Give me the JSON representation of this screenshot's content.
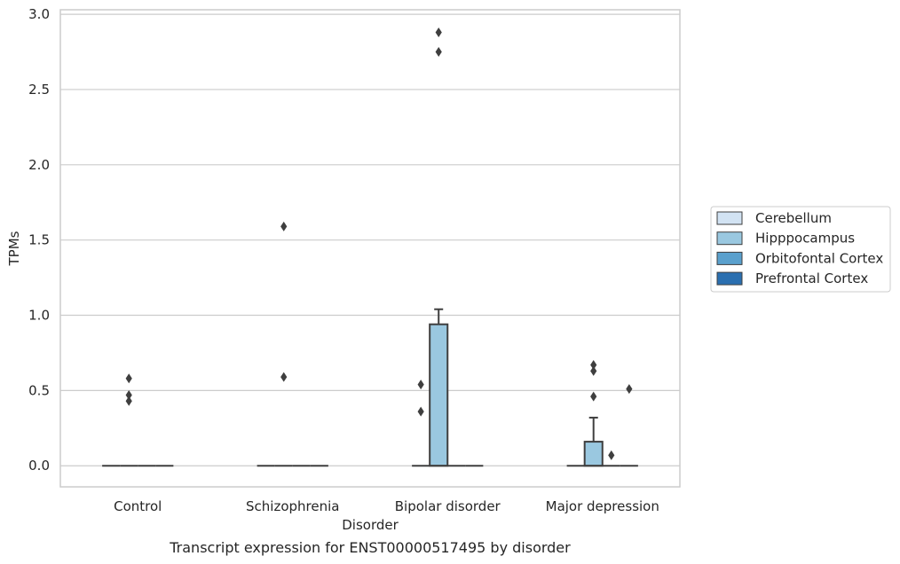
{
  "chart_data": {
    "type": "box",
    "title": "",
    "caption": "Transcript expression for ENST00000517495 by disorder",
    "xlabel": "Disorder",
    "ylabel": "TPMs",
    "ylim": [
      -0.14,
      3.03
    ],
    "yticks": [
      "0.0",
      "0.5",
      "1.0",
      "1.5",
      "2.0",
      "2.5",
      "3.0"
    ],
    "ytick_values": [
      0,
      0.5,
      1.0,
      1.5,
      2.0,
      2.5,
      3.0
    ],
    "grid": "horizontal",
    "legend_position": "right",
    "categories": [
      "Control",
      "Schizophrenia",
      "Bipolar disorder",
      "Major depression"
    ],
    "series": [
      {
        "name": "Cerebellum",
        "color": "#d2e3f3",
        "boxes": [
          {
            "q1": 0,
            "median": 0,
            "q3": 0,
            "whisker_low": 0,
            "whisker_high": 0,
            "outliers": []
          },
          {
            "q1": 0,
            "median": 0,
            "q3": 0,
            "whisker_low": 0,
            "whisker_high": 0,
            "outliers": []
          },
          {
            "q1": 0,
            "median": 0,
            "q3": 0,
            "whisker_low": 0,
            "whisker_high": 0,
            "outliers": [
              0.54,
              0.36
            ]
          },
          {
            "q1": 0,
            "median": 0,
            "q3": 0,
            "whisker_low": 0,
            "whisker_high": 0,
            "outliers": []
          }
        ]
      },
      {
        "name": "Hipppocampus",
        "color": "#9ac8e0",
        "boxes": [
          {
            "q1": 0,
            "median": 0,
            "q3": 0,
            "whisker_low": 0,
            "whisker_high": 0,
            "outliers": [
              0.58,
              0.47,
              0.43
            ]
          },
          {
            "q1": 0,
            "median": 0,
            "q3": 0,
            "whisker_low": 0,
            "whisker_high": 0,
            "outliers": [
              1.59,
              0.59
            ]
          },
          {
            "q1": 0,
            "median": 0,
            "q3": 0.94,
            "whisker_low": 0,
            "whisker_high": 1.04,
            "outliers": [
              2.88,
              2.75
            ]
          },
          {
            "q1": 0,
            "median": 0,
            "q3": 0.16,
            "whisker_low": 0,
            "whisker_high": 0.32,
            "outliers": [
              0.67,
              0.63,
              0.46
            ]
          }
        ]
      },
      {
        "name": "Orbitofontal Cortex",
        "color": "#5aa0cd",
        "boxes": [
          {
            "q1": 0,
            "median": 0,
            "q3": 0,
            "whisker_low": 0,
            "whisker_high": 0,
            "outliers": []
          },
          {
            "q1": 0,
            "median": 0,
            "q3": 0,
            "whisker_low": 0,
            "whisker_high": 0,
            "outliers": []
          },
          {
            "q1": 0,
            "median": 0,
            "q3": 0,
            "whisker_low": 0,
            "whisker_high": 0,
            "outliers": []
          },
          {
            "q1": 0,
            "median": 0,
            "q3": 0,
            "whisker_low": 0,
            "whisker_high": 0,
            "outliers": [
              0.07
            ]
          }
        ]
      },
      {
        "name": "Prefrontal Cortex",
        "color": "#2a6fb0",
        "boxes": [
          {
            "q1": 0,
            "median": 0,
            "q3": 0,
            "whisker_low": 0,
            "whisker_high": 0,
            "outliers": []
          },
          {
            "q1": 0,
            "median": 0,
            "q3": 0,
            "whisker_low": 0,
            "whisker_high": 0,
            "outliers": []
          },
          {
            "q1": 0,
            "median": 0,
            "q3": 0,
            "whisker_low": 0,
            "whisker_high": 0,
            "outliers": []
          },
          {
            "q1": 0,
            "median": 0,
            "q3": 0,
            "whisker_low": 0,
            "whisker_high": 0,
            "outliers": [
              0.51
            ]
          }
        ]
      }
    ]
  }
}
